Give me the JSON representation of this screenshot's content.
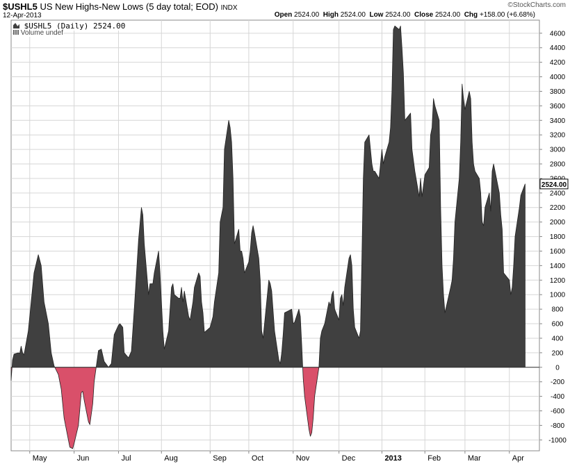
{
  "header": {
    "symbol": "$USHL5",
    "description": "US New Highs-New Lows (5 day total; EOD)",
    "exchange": "INDX",
    "date": "12-Apr-2013",
    "watermark": "©StockCharts.com",
    "open_label": "Open",
    "open_value": "2524.00",
    "high_label": "High",
    "high_value": "2524.00",
    "low_label": "Low",
    "low_value": "2524.00",
    "close_label": "Close",
    "close_value": "2524.00",
    "chg_label": "Chg",
    "chg_value": "+158.00 (+6.68%)",
    "legend_series": "$USHL5 (Daily) 2524.00",
    "legend_volume": "Volume undef"
  },
  "chart_data": {
    "type": "area",
    "title": "$USHL5 US New Highs-New Lows (5 day total; EOD)",
    "last_value_label": "2524.00",
    "ylim": [
      -1150,
      4780
    ],
    "y_ticks": [
      -1000,
      -800,
      -600,
      -400,
      -200,
      0,
      200,
      400,
      600,
      800,
      1000,
      1200,
      1400,
      1600,
      1800,
      2000,
      2200,
      2400,
      2600,
      2800,
      3000,
      3200,
      3400,
      3600,
      3800,
      4000,
      4200,
      4400,
      4600
    ],
    "x_range": [
      "2013-04-19",
      "2013-04-19"
    ],
    "x_range_note": "",
    "date_start": "2012-04-18",
    "date_end": "2013-04-22",
    "month_ticks": [
      {
        "date": "2012-05-01",
        "label": "May"
      },
      {
        "date": "2012-06-01",
        "label": "Jun"
      },
      {
        "date": "2012-07-02",
        "label": "Jul"
      },
      {
        "date": "2012-08-01",
        "label": "Aug"
      },
      {
        "date": "2012-09-04",
        "label": "Sep"
      },
      {
        "date": "2012-10-01",
        "label": "Oct"
      },
      {
        "date": "2012-11-01",
        "label": "Nov"
      },
      {
        "date": "2012-12-03",
        "label": "Dec"
      },
      {
        "date": "2013-01-02",
        "label": "2013",
        "bold": true
      },
      {
        "date": "2013-02-01",
        "label": "Feb"
      },
      {
        "date": "2013-03-01",
        "label": "Mar"
      },
      {
        "date": "2013-04-01",
        "label": "Apr"
      }
    ],
    "colors": {
      "positive": "#404040",
      "negative": "#d9506a",
      "grid": "#d6d6d6",
      "axis": "#888888"
    },
    "series": [
      {
        "points": [
          [
            "2012-04-18",
            -180
          ],
          [
            "2012-04-19",
            100
          ],
          [
            "2012-04-20",
            180
          ],
          [
            "2012-04-23",
            200
          ],
          [
            "2012-04-24",
            190
          ],
          [
            "2012-04-25",
            290
          ],
          [
            "2012-04-26",
            200
          ],
          [
            "2012-04-27",
            170
          ],
          [
            "2012-04-30",
            500
          ],
          [
            "2012-05-02",
            900
          ],
          [
            "2012-05-04",
            1300
          ],
          [
            "2012-05-07",
            1550
          ],
          [
            "2012-05-09",
            1400
          ],
          [
            "2012-05-11",
            900
          ],
          [
            "2012-05-14",
            600
          ],
          [
            "2012-05-16",
            200
          ],
          [
            "2012-05-18",
            20
          ],
          [
            "2012-05-21",
            -100
          ],
          [
            "2012-05-23",
            -300
          ],
          [
            "2012-05-25",
            -700
          ],
          [
            "2012-05-29",
            -1100
          ],
          [
            "2012-05-31",
            -1120
          ],
          [
            "2012-06-01",
            -1050
          ],
          [
            "2012-06-04",
            -800
          ],
          [
            "2012-06-06",
            -350
          ],
          [
            "2012-06-07",
            -330
          ],
          [
            "2012-06-08",
            -450
          ],
          [
            "2012-06-11",
            -750
          ],
          [
            "2012-06-12",
            -790
          ],
          [
            "2012-06-14",
            -500
          ],
          [
            "2012-06-15",
            -200
          ],
          [
            "2012-06-18",
            230
          ],
          [
            "2012-06-20",
            250
          ],
          [
            "2012-06-22",
            80
          ],
          [
            "2012-06-25",
            0
          ],
          [
            "2012-06-27",
            50
          ],
          [
            "2012-06-29",
            450
          ],
          [
            "2012-07-02",
            580
          ],
          [
            "2012-07-03",
            600
          ],
          [
            "2012-07-05",
            550
          ],
          [
            "2012-07-06",
            200
          ],
          [
            "2012-07-09",
            130
          ],
          [
            "2012-07-11",
            220
          ],
          [
            "2012-07-13",
            800
          ],
          [
            "2012-07-16",
            1750
          ],
          [
            "2012-07-18",
            2200
          ],
          [
            "2012-07-19",
            2100
          ],
          [
            "2012-07-20",
            1700
          ],
          [
            "2012-07-23",
            1000
          ],
          [
            "2012-07-24",
            1150
          ],
          [
            "2012-07-26",
            1150
          ],
          [
            "2012-07-27",
            1300
          ],
          [
            "2012-07-30",
            1600
          ],
          [
            "2012-07-31",
            1300
          ],
          [
            "2012-08-02",
            500
          ],
          [
            "2012-08-03",
            250
          ],
          [
            "2012-08-06",
            500
          ],
          [
            "2012-08-08",
            1100
          ],
          [
            "2012-08-09",
            1150
          ],
          [
            "2012-08-10",
            1000
          ],
          [
            "2012-08-13",
            950
          ],
          [
            "2012-08-14",
            950
          ],
          [
            "2012-08-15",
            1100
          ],
          [
            "2012-08-16",
            900
          ],
          [
            "2012-08-17",
            1050
          ],
          [
            "2012-08-20",
            700
          ],
          [
            "2012-08-21",
            650
          ],
          [
            "2012-08-23",
            900
          ],
          [
            "2012-08-24",
            1100
          ],
          [
            "2012-08-27",
            1300
          ],
          [
            "2012-08-28",
            1250
          ],
          [
            "2012-08-29",
            900
          ],
          [
            "2012-08-30",
            750
          ],
          [
            "2012-08-31",
            480
          ],
          [
            "2012-09-04",
            550
          ],
          [
            "2012-09-06",
            700
          ],
          [
            "2012-09-07",
            900
          ],
          [
            "2012-09-10",
            1300
          ],
          [
            "2012-09-11",
            2000
          ],
          [
            "2012-09-13",
            2200
          ],
          [
            "2012-09-14",
            3000
          ],
          [
            "2012-09-17",
            3400
          ],
          [
            "2012-09-18",
            3300
          ],
          [
            "2012-09-19",
            3100
          ],
          [
            "2012-09-20",
            2600
          ],
          [
            "2012-09-21",
            1700
          ],
          [
            "2012-09-24",
            1900
          ],
          [
            "2012-09-25",
            1600
          ],
          [
            "2012-09-26",
            1600
          ],
          [
            "2012-09-27",
            1500
          ],
          [
            "2012-09-28",
            1300
          ],
          [
            "2012-10-01",
            1450
          ],
          [
            "2012-10-02",
            1600
          ],
          [
            "2012-10-03",
            1850
          ],
          [
            "2012-10-04",
            1950
          ],
          [
            "2012-10-05",
            1850
          ],
          [
            "2012-10-08",
            1500
          ],
          [
            "2012-10-09",
            1200
          ],
          [
            "2012-10-10",
            500
          ],
          [
            "2012-10-11",
            400
          ],
          [
            "2012-10-12",
            600
          ],
          [
            "2012-10-15",
            1200
          ],
          [
            "2012-10-16",
            1150
          ],
          [
            "2012-10-17",
            1050
          ],
          [
            "2012-10-19",
            500
          ],
          [
            "2012-10-22",
            100
          ],
          [
            "2012-10-23",
            50
          ],
          [
            "2012-10-24",
            200
          ],
          [
            "2012-10-25",
            450
          ],
          [
            "2012-10-26",
            750
          ],
          [
            "2012-10-31",
            800
          ],
          [
            "2012-11-01",
            600
          ],
          [
            "2012-11-02",
            620
          ],
          [
            "2012-11-05",
            800
          ],
          [
            "2012-11-06",
            700
          ],
          [
            "2012-11-07",
            300
          ],
          [
            "2012-11-08",
            -150
          ],
          [
            "2012-11-09",
            -400
          ],
          [
            "2012-11-12",
            -850
          ],
          [
            "2012-11-13",
            -950
          ],
          [
            "2012-11-14",
            -900
          ],
          [
            "2012-11-15",
            -700
          ],
          [
            "2012-11-16",
            -400
          ],
          [
            "2012-11-19",
            0
          ],
          [
            "2012-11-20",
            400
          ],
          [
            "2012-11-21",
            500
          ],
          [
            "2012-11-23",
            600
          ],
          [
            "2012-11-26",
            900
          ],
          [
            "2012-11-27",
            850
          ],
          [
            "2012-11-28",
            1000
          ],
          [
            "2012-11-29",
            1050
          ],
          [
            "2012-11-30",
            800
          ],
          [
            "2012-12-03",
            650
          ],
          [
            "2012-12-04",
            950
          ],
          [
            "2012-12-05",
            1000
          ],
          [
            "2012-12-06",
            850
          ],
          [
            "2012-12-07",
            1100
          ],
          [
            "2012-12-10",
            1500
          ],
          [
            "2012-12-11",
            1550
          ],
          [
            "2012-12-12",
            1400
          ],
          [
            "2012-12-13",
            800
          ],
          [
            "2012-12-14",
            550
          ],
          [
            "2012-12-17",
            400
          ],
          [
            "2012-12-18",
            500
          ],
          [
            "2012-12-19",
            1500
          ],
          [
            "2012-12-20",
            2600
          ],
          [
            "2012-12-21",
            3100
          ],
          [
            "2012-12-24",
            3200
          ],
          [
            "2012-12-26",
            2800
          ],
          [
            "2012-12-27",
            2700
          ],
          [
            "2012-12-28",
            2700
          ],
          [
            "2012-12-31",
            2600
          ],
          [
            "2013-01-02",
            3000
          ],
          [
            "2013-01-03",
            2800
          ],
          [
            "2013-01-04",
            2900
          ],
          [
            "2013-01-07",
            3100
          ],
          [
            "2013-01-08",
            3300
          ],
          [
            "2013-01-09",
            3800
          ],
          [
            "2013-01-10",
            4650
          ],
          [
            "2013-01-11",
            4700
          ],
          [
            "2013-01-14",
            4650
          ],
          [
            "2013-01-15",
            4700
          ],
          [
            "2013-01-16",
            4400
          ],
          [
            "2013-01-17",
            4050
          ],
          [
            "2013-01-18",
            3400
          ],
          [
            "2013-01-22",
            3500
          ],
          [
            "2013-01-23",
            3000
          ],
          [
            "2013-01-25",
            2700
          ],
          [
            "2013-01-28",
            2350
          ],
          [
            "2013-01-29",
            2600
          ],
          [
            "2013-01-30",
            2350
          ],
          [
            "2013-01-31",
            2500
          ],
          [
            "2013-02-01",
            2650
          ],
          [
            "2013-02-04",
            2750
          ],
          [
            "2013-02-05",
            3200
          ],
          [
            "2013-02-06",
            3300
          ],
          [
            "2013-02-07",
            3700
          ],
          [
            "2013-02-08",
            3600
          ],
          [
            "2013-02-11",
            3400
          ],
          [
            "2013-02-12",
            2200
          ],
          [
            "2013-02-13",
            1400
          ],
          [
            "2013-02-14",
            1000
          ],
          [
            "2013-02-15",
            750
          ],
          [
            "2013-02-19",
            1100
          ],
          [
            "2013-02-20",
            1200
          ],
          [
            "2013-02-21",
            1500
          ],
          [
            "2013-02-22",
            2000
          ],
          [
            "2013-02-25",
            2600
          ],
          [
            "2013-02-26",
            3100
          ],
          [
            "2013-02-27",
            3900
          ],
          [
            "2013-02-28",
            3700
          ],
          [
            "2013-03-01",
            3550
          ],
          [
            "2013-03-04",
            3800
          ],
          [
            "2013-03-05",
            3700
          ],
          [
            "2013-03-06",
            3100
          ],
          [
            "2013-03-07",
            2800
          ],
          [
            "2013-03-08",
            2700
          ],
          [
            "2013-03-11",
            2600
          ],
          [
            "2013-03-12",
            2400
          ],
          [
            "2013-03-13",
            2000
          ],
          [
            "2013-03-14",
            1950
          ],
          [
            "2013-03-15",
            2200
          ],
          [
            "2013-03-18",
            2400
          ],
          [
            "2013-03-19",
            2150
          ],
          [
            "2013-03-20",
            2700
          ],
          [
            "2013-03-21",
            2800
          ],
          [
            "2013-03-22",
            2700
          ],
          [
            "2013-03-25",
            2400
          ],
          [
            "2013-03-26",
            2100
          ],
          [
            "2013-03-27",
            1900
          ],
          [
            "2013-03-28",
            1300
          ],
          [
            "2013-04-01",
            1200
          ],
          [
            "2013-04-02",
            1000
          ],
          [
            "2013-04-03",
            1100
          ],
          [
            "2013-04-04",
            1400
          ],
          [
            "2013-04-05",
            1800
          ],
          [
            "2013-04-08",
            2200
          ],
          [
            "2013-04-09",
            2366
          ],
          [
            "2013-04-12",
            2524
          ]
        ]
      }
    ]
  }
}
